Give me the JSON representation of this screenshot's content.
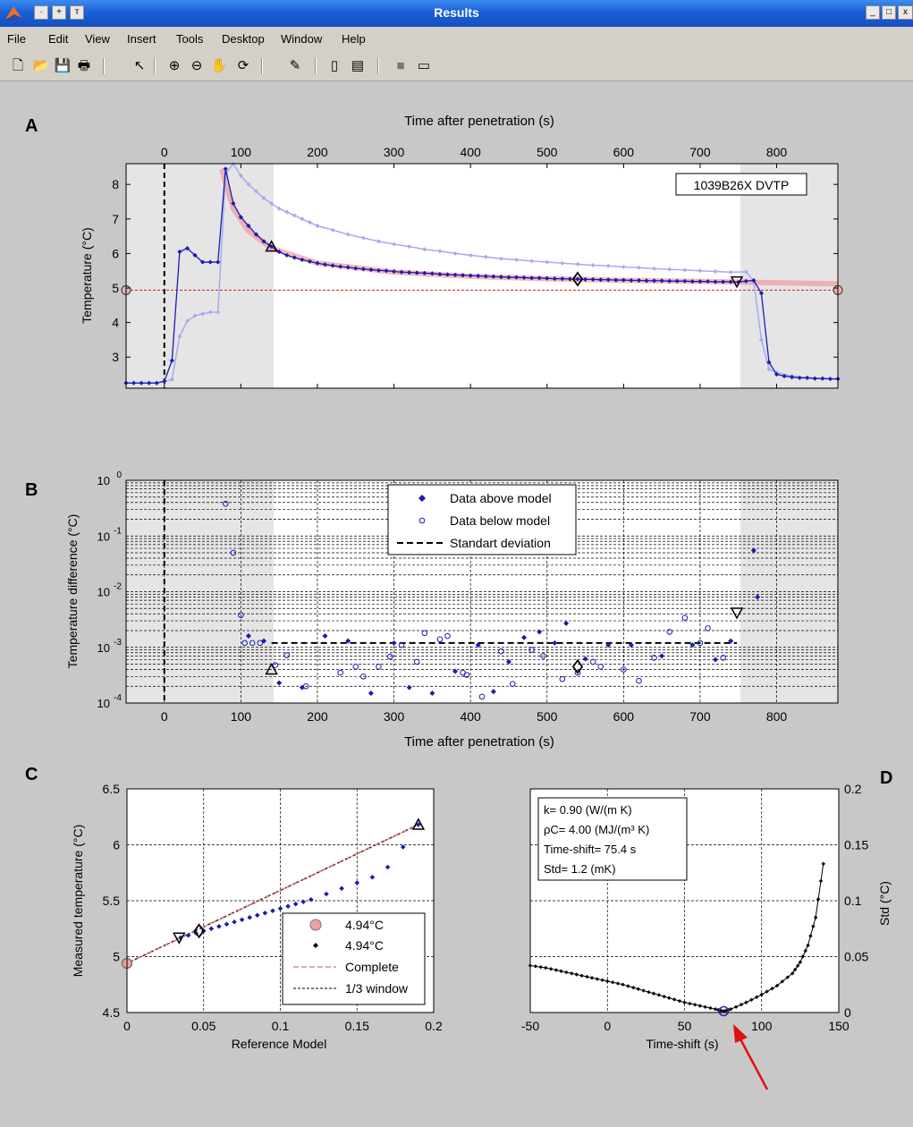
{
  "window": {
    "title": "Results"
  },
  "menu": [
    "File",
    "Edit",
    "View",
    "Insert",
    "Tools",
    "Desktop",
    "Window",
    "Help"
  ],
  "colors": {
    "data_blue": "#1b1bb4",
    "light_blue": "#a9a9f0",
    "model_pink": "#f08c8c",
    "shade": "#e6e6e6",
    "titlebar": "#1c5fd6",
    "arrow": "#e01010"
  },
  "panels": {
    "A": {
      "letter": "A",
      "top_xlabel": "Time after penetration (s)",
      "ylabel": "Temperature (°C)",
      "label_box": "1039B26X   DVTP",
      "x_ticks": [
        "0",
        "100",
        "200",
        "300",
        "400",
        "500",
        "600",
        "700",
        "800"
      ],
      "y_ticks": [
        "3",
        "4",
        "5",
        "6",
        "7",
        "8"
      ]
    },
    "B": {
      "letter": "B",
      "xlabel": "Time after penetration (s)",
      "ylabel": "Temperature difference (°C)",
      "x_ticks": [
        "0",
        "100",
        "200",
        "300",
        "400",
        "500",
        "600",
        "700",
        "800"
      ],
      "y_ticks_base": [
        "10",
        "10",
        "10",
        "10",
        "10"
      ],
      "y_ticks_exp": [
        "-4",
        "-3",
        "-2",
        "-1",
        "0"
      ],
      "legend": [
        "Data above model",
        "Data below model",
        "Standart deviation"
      ]
    },
    "C": {
      "letter": "C",
      "xlabel": "Reference Model",
      "ylabel": "Measured temperature (°C)",
      "x_ticks": [
        "0",
        "0.05",
        "0.1",
        "0.15",
        "0.2"
      ],
      "y_ticks": [
        "4.5",
        "5",
        "5.5",
        "6",
        "6.5"
      ],
      "legend": [
        "4.94°C",
        "4.94°C",
        "Complete",
        "1/3 window"
      ]
    },
    "D": {
      "letter": "D",
      "xlabel": "Time-shift (s)",
      "ylabel": "Std (°C)",
      "x_ticks": [
        "-50",
        "0",
        "50",
        "100",
        "150"
      ],
      "y_ticks": [
        "0",
        "0.05",
        "0.1",
        "0.15",
        "0.2"
      ],
      "info": [
        "k= 0.90 (W/(m K)",
        "ρC= 4.00 (MJ/(m³ K)",
        "Time-shift= 75.4 s",
        "Std= 1.2 (mK)"
      ]
    }
  },
  "chart_data": [
    {
      "type": "line",
      "panel": "A",
      "xlabel": "Time after penetration (s)",
      "ylabel": "Temperature (°C)",
      "xlim": [
        -50,
        880
      ],
      "ylim": [
        2.1,
        8.6
      ],
      "reference_temperature": 4.94,
      "series": [
        {
          "x": [
            -50,
            -40,
            -30,
            -20,
            -10,
            0,
            10,
            20,
            30,
            40,
            50,
            60,
            70,
            80,
            90,
            100,
            110,
            120,
            130,
            140,
            150,
            160,
            170,
            180,
            190,
            200,
            210,
            220,
            230,
            240,
            250,
            260,
            270,
            280,
            290,
            300,
            310,
            320,
            330,
            340,
            350,
            360,
            370,
            380,
            390,
            400,
            410,
            420,
            430,
            440,
            450,
            460,
            470,
            480,
            490,
            500,
            510,
            520,
            530,
            540,
            550,
            560,
            570,
            580,
            590,
            600,
            610,
            620,
            630,
            640,
            650,
            660,
            670,
            680,
            690,
            700,
            710,
            720,
            730,
            740,
            750,
            760,
            770,
            780,
            790,
            800,
            810,
            820,
            830,
            840,
            850,
            860,
            870,
            880
          ],
          "values": [
            2.25,
            2.25,
            2.25,
            2.25,
            2.25,
            2.3,
            2.9,
            6.05,
            6.15,
            5.95,
            5.75,
            5.75,
            5.75,
            8.45,
            7.45,
            7.05,
            6.8,
            6.55,
            6.35,
            6.2,
            6.05,
            5.95,
            5.88,
            5.82,
            5.77,
            5.72,
            5.68,
            5.65,
            5.62,
            5.6,
            5.57,
            5.55,
            5.53,
            5.51,
            5.5,
            5.48,
            5.46,
            5.45,
            5.44,
            5.43,
            5.42,
            5.4,
            5.39,
            5.38,
            5.37,
            5.36,
            5.35,
            5.34,
            5.33,
            5.32,
            5.31,
            5.31,
            5.3,
            5.29,
            5.29,
            5.28,
            5.27,
            5.27,
            5.26,
            5.26,
            5.25,
            5.25,
            5.24,
            5.24,
            5.23,
            5.23,
            5.22,
            5.22,
            5.21,
            5.21,
            5.21,
            5.2,
            5.2,
            5.2,
            5.19,
            5.19,
            5.19,
            5.18,
            5.18,
            5.18,
            5.17,
            5.2,
            5.22,
            4.85,
            2.85,
            2.5,
            2.45,
            2.42,
            2.4,
            2.4,
            2.38,
            2.38,
            2.37,
            2.37
          ]
        },
        {
          "x": [
            0,
            10,
            20,
            30,
            40,
            50,
            60,
            70,
            80,
            90,
            100,
            110,
            120,
            130,
            140,
            150,
            160,
            170,
            180,
            190,
            200,
            220,
            240,
            260,
            280,
            300,
            320,
            340,
            360,
            380,
            400,
            420,
            440,
            460,
            480,
            500,
            520,
            540,
            560,
            580,
            600,
            620,
            640,
            660,
            680,
            700,
            720,
            740,
            760,
            770,
            780,
            790,
            800,
            820,
            840,
            860,
            880
          ],
          "values": [
            2.3,
            2.35,
            3.6,
            4.05,
            4.2,
            4.25,
            4.3,
            4.3,
            8.3,
            8.6,
            8.25,
            8.0,
            7.8,
            7.6,
            7.45,
            7.3,
            7.2,
            7.1,
            7.0,
            6.9,
            6.8,
            6.68,
            6.55,
            6.45,
            6.35,
            6.27,
            6.2,
            6.12,
            6.07,
            6.0,
            5.95,
            5.9,
            5.85,
            5.82,
            5.78,
            5.75,
            5.72,
            5.69,
            5.66,
            5.64,
            5.61,
            5.59,
            5.56,
            5.54,
            5.52,
            5.5,
            5.48,
            5.46,
            5.47,
            5.2,
            3.5,
            2.65,
            2.55,
            2.45,
            2.4,
            2.38,
            2.36
          ]
        },
        {
          "x": [
            75,
            90,
            110,
            140,
            200,
            300,
            400,
            500,
            600,
            700,
            880
          ],
          "values": [
            8.45,
            7.3,
            6.65,
            6.15,
            5.72,
            5.46,
            5.34,
            5.27,
            5.22,
            5.19,
            5.12
          ]
        }
      ]
    },
    {
      "type": "scatter",
      "panel": "B",
      "xlabel": "Time after penetration (s)",
      "ylabel": "Temperature difference (°C)",
      "xlim": [
        -50,
        880
      ],
      "ylim": [
        0.0001,
        1
      ],
      "log_y": true,
      "standard_deviation": 0.0012,
      "series": [
        {
          "name": "Data above model",
          "x": [
            110,
            130,
            150,
            180,
            210,
            240,
            270,
            300,
            320,
            350,
            380,
            410,
            430,
            450,
            470,
            490,
            510,
            525,
            550,
            580,
            610,
            650,
            690,
            720,
            740,
            770,
            775
          ],
          "values": [
            0.0016,
            0.0013,
            0.00023,
            0.00019,
            0.0016,
            0.0013,
            0.00015,
            0.0012,
            0.00019,
            0.00015,
            0.00037,
            0.0011,
            0.00016,
            0.00055,
            0.0015,
            0.0019,
            0.0012,
            0.0027,
            0.00062,
            0.0011,
            0.0011,
            0.0007,
            0.0011,
            0.0006,
            0.0013,
            0.055,
            0.008
          ]
        },
        {
          "name": "Data below model",
          "x": [
            80,
            90,
            100,
            105,
            115,
            125,
            145,
            160,
            185,
            230,
            250,
            260,
            280,
            295,
            310,
            330,
            340,
            360,
            370,
            390,
            395,
            415,
            440,
            455,
            480,
            495,
            520,
            540,
            560,
            570,
            600,
            620,
            640,
            660,
            680,
            700,
            710,
            730
          ],
          "values": [
            0.38,
            0.05,
            0.0038,
            0.0012,
            0.0012,
            0.0012,
            0.00048,
            0.00072,
            0.0002,
            0.00035,
            0.00045,
            0.0003,
            0.00045,
            0.00068,
            0.0011,
            0.00055,
            0.0018,
            0.0014,
            0.0016,
            0.00035,
            0.00032,
            0.00013,
            0.00085,
            0.00022,
            0.0009,
            0.0007,
            0.00027,
            0.00035,
            0.00055,
            0.00045,
            0.0004,
            0.00025,
            0.00065,
            0.0019,
            0.0034,
            0.0012,
            0.0022,
            0.00065
          ]
        }
      ]
    },
    {
      "type": "scatter",
      "panel": "C",
      "xlabel": "Reference Model",
      "ylabel": "Measured temperature (°C)",
      "xlim": [
        0,
        0.2
      ],
      "ylim": [
        4.5,
        6.5
      ],
      "series": [
        {
          "name": "4.94°C",
          "x": [
            0.035,
            0.04,
            0.045,
            0.05,
            0.055,
            0.06,
            0.065,
            0.07,
            0.075,
            0.08,
            0.085,
            0.09,
            0.095,
            0.1,
            0.105,
            0.11,
            0.115,
            0.12,
            0.13,
            0.14,
            0.15,
            0.16,
            0.17,
            0.18,
            0.19
          ],
          "values": [
            5.17,
            5.19,
            5.21,
            5.23,
            5.25,
            5.27,
            5.29,
            5.31,
            5.33,
            5.35,
            5.37,
            5.39,
            5.41,
            5.43,
            5.45,
            5.47,
            5.49,
            5.51,
            5.56,
            5.61,
            5.66,
            5.71,
            5.8,
            5.98,
            6.18
          ]
        },
        {
          "name": "Complete",
          "x": [
            0,
            0.19
          ],
          "values": [
            4.94,
            6.18
          ]
        },
        {
          "name": "1/3 window",
          "x": [
            0,
            0.19
          ],
          "values": [
            4.94,
            6.18
          ]
        }
      ]
    },
    {
      "type": "line",
      "panel": "D",
      "xlabel": "Time-shift (s)",
      "ylabel": "Std (°C)",
      "xlim": [
        -50,
        150
      ],
      "ylim": [
        0,
        0.2
      ],
      "series": [
        {
          "x": [
            -50,
            -40,
            -30,
            -20,
            -10,
            0,
            10,
            20,
            30,
            40,
            50,
            60,
            70,
            75.4,
            80,
            90,
            100,
            110,
            120,
            125,
            130,
            135,
            140
          ],
          "values": [
            0.042,
            0.04,
            0.037,
            0.034,
            0.031,
            0.028,
            0.025,
            0.021,
            0.017,
            0.013,
            0.009,
            0.006,
            0.003,
            0.0012,
            0.003,
            0.009,
            0.016,
            0.024,
            0.035,
            0.045,
            0.06,
            0.085,
            0.133
          ]
        }
      ]
    }
  ]
}
